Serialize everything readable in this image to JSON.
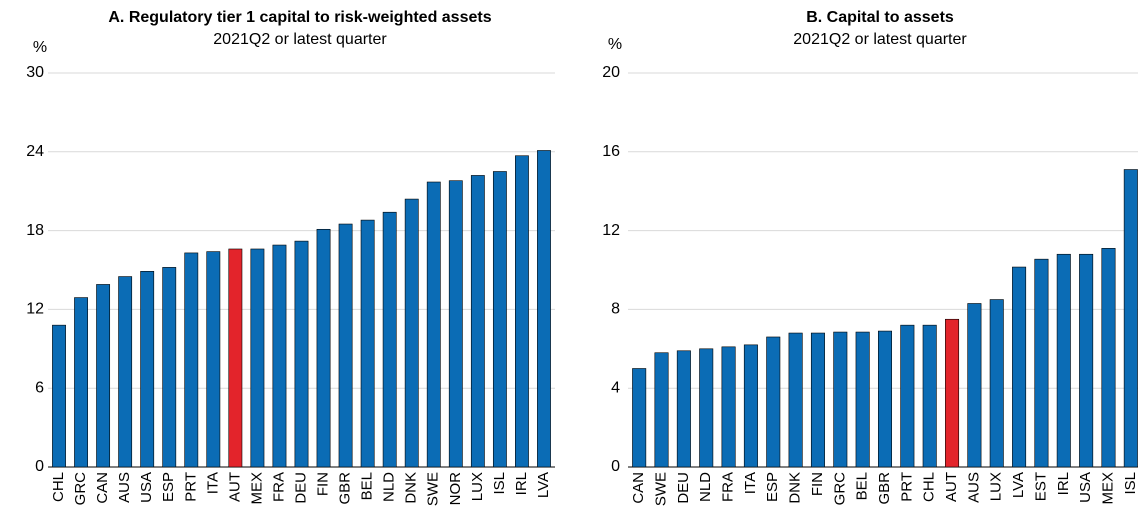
{
  "chart_data": [
    {
      "type": "bar",
      "title": "A. Regulatory tier 1 capital to risk-weighted assets",
      "subtitle": "2021Q2 or latest quarter",
      "y_label": "%",
      "categories": [
        "CHL",
        "GRC",
        "CAN",
        "AUS",
        "USA",
        "ESP",
        "PRT",
        "ITA",
        "AUT",
        "MEX",
        "FRA",
        "DEU",
        "FIN",
        "GBR",
        "BEL",
        "NLD",
        "DNK",
        "SWE",
        "NOR",
        "LUX",
        "ISL",
        "IRL",
        "LVA"
      ],
      "values": [
        10.8,
        12.9,
        13.9,
        14.5,
        14.9,
        15.2,
        16.3,
        16.4,
        16.6,
        16.6,
        16.9,
        17.2,
        18.1,
        18.5,
        18.8,
        19.4,
        20.4,
        21.7,
        21.8,
        22.2,
        22.5,
        23.7,
        24.1
      ],
      "colors": [
        "#0b6cb5",
        "#0b6cb5",
        "#0b6cb5",
        "#0b6cb5",
        "#0b6cb5",
        "#0b6cb5",
        "#0b6cb5",
        "#0b6cb5",
        "#e3242b",
        "#0b6cb5",
        "#0b6cb5",
        "#0b6cb5",
        "#0b6cb5",
        "#0b6cb5",
        "#0b6cb5",
        "#0b6cb5",
        "#0b6cb5",
        "#0b6cb5",
        "#0b6cb5",
        "#0b6cb5",
        "#0b6cb5",
        "#0b6cb5",
        "#0b6cb5"
      ],
      "ylim": [
        0,
        30
      ],
      "yticks": [
        0,
        6,
        12,
        18,
        24,
        30
      ],
      "grid": true
    },
    {
      "type": "bar",
      "title": "B. Capital to assets",
      "subtitle": "2021Q2 or latest quarter",
      "y_label": "%",
      "categories": [
        "CAN",
        "SWE",
        "DEU",
        "NLD",
        "FRA",
        "ITA",
        "ESP",
        "DNK",
        "FIN",
        "GRC",
        "BEL",
        "GBR",
        "PRT",
        "CHL",
        "AUT",
        "AUS",
        "LUX",
        "LVA",
        "EST",
        "IRL",
        "USA",
        "MEX",
        "ISL"
      ],
      "values": [
        5.0,
        5.8,
        5.9,
        6.0,
        6.1,
        6.2,
        6.6,
        6.8,
        6.8,
        6.85,
        6.85,
        6.9,
        7.2,
        7.2,
        7.5,
        8.3,
        8.5,
        10.15,
        10.55,
        10.8,
        10.8,
        11.1,
        15.1
      ],
      "colors": [
        "#0b6cb5",
        "#0b6cb5",
        "#0b6cb5",
        "#0b6cb5",
        "#0b6cb5",
        "#0b6cb5",
        "#0b6cb5",
        "#0b6cb5",
        "#0b6cb5",
        "#0b6cb5",
        "#0b6cb5",
        "#0b6cb5",
        "#0b6cb5",
        "#0b6cb5",
        "#e3242b",
        "#0b6cb5",
        "#0b6cb5",
        "#0b6cb5",
        "#0b6cb5",
        "#0b6cb5",
        "#0b6cb5",
        "#0b6cb5",
        "#0b6cb5"
      ],
      "ylim": [
        0,
        20
      ],
      "yticks": [
        0,
        4,
        8,
        12,
        16,
        20
      ],
      "grid": true
    }
  ]
}
